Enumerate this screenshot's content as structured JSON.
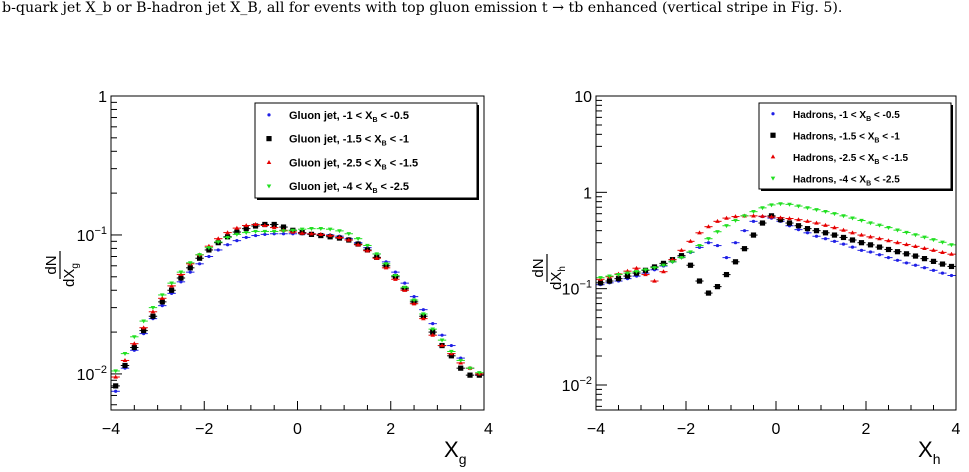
{
  "caption": "b-quark jet X_b or B-hadron jet X_B, all for events with top gluon emission t → tb enhanced (vertical stripe in Fig. 5).",
  "chart_data": [
    {
      "type": "scatter",
      "log_y": true,
      "xlim": [
        -4,
        4
      ],
      "ylim": [
        0.0055,
        1
      ],
      "x_ticks": [
        "−4",
        "−2",
        "0",
        "2",
        "4"
      ],
      "y_ticks": [
        {
          "value": 1,
          "base": "1",
          "exp": ""
        },
        {
          "value": 0.1,
          "base": "10",
          "exp": "−1"
        },
        {
          "value": 0.01,
          "base": "10",
          "exp": "−2"
        }
      ],
      "xlabel_main": "X",
      "xlabel_sub": "g",
      "ylabel_num": "dN",
      "ylabel_den_main": "dX",
      "ylabel_den_sub": "g",
      "legend_position": "top-right",
      "grid": false,
      "x": [
        -3.9,
        -3.7,
        -3.5,
        -3.3,
        -3.1,
        -2.9,
        -2.7,
        -2.5,
        -2.3,
        -2.1,
        -1.9,
        -1.7,
        -1.5,
        -1.3,
        -1.1,
        -0.9,
        -0.7,
        -0.5,
        -0.3,
        -0.1,
        0.1,
        0.3,
        0.5,
        0.7,
        0.9,
        1.1,
        1.3,
        1.5,
        1.7,
        1.9,
        2.1,
        2.3,
        2.5,
        2.7,
        2.9,
        3.1,
        3.3,
        3.5,
        3.7,
        3.9
      ],
      "series": [
        {
          "name": "Gluon jet, -1 < X",
          "name_sub": "B",
          "name_tail": " < -0.5",
          "color": "#1f1fe6",
          "marker": "dot",
          "values": [
            0.0075,
            0.011,
            0.0148,
            0.0195,
            0.025,
            0.031,
            0.038,
            0.046,
            0.054,
            0.062,
            0.07,
            0.078,
            0.085,
            0.091,
            0.096,
            0.099,
            0.101,
            0.102,
            0.102,
            0.102,
            0.102,
            0.102,
            0.101,
            0.1,
            0.098,
            0.094,
            0.088,
            0.081,
            0.073,
            0.064,
            0.054,
            0.045,
            0.036,
            0.029,
            0.023,
            0.019,
            0.016,
            0.013,
            0.011,
            0.0098
          ]
        },
        {
          "name": "Gluon jet, -1.5 < X",
          "name_sub": "B",
          "name_tail": " < -1",
          "color": "#000000",
          "marker": "square",
          "values": [
            0.0082,
            0.0115,
            0.0155,
            0.0205,
            0.026,
            0.033,
            0.04,
            0.049,
            0.058,
            0.068,
            0.078,
            0.088,
            0.097,
            0.105,
            0.111,
            0.116,
            0.119,
            0.119,
            0.114,
            0.108,
            0.104,
            0.101,
            0.099,
            0.097,
            0.095,
            0.092,
            0.086,
            0.078,
            0.069,
            0.06,
            0.05,
            0.041,
            0.033,
            0.026,
            0.02,
            0.016,
            0.0135,
            0.011,
            0.0098,
            0.0098
          ]
        },
        {
          "name": "Gluon jet, -2.5 < X",
          "name_sub": "B",
          "name_tail": " < -1.5",
          "color": "#e60000",
          "marker": "triangle",
          "values": [
            0.0095,
            0.0125,
            0.0165,
            0.0215,
            0.028,
            0.035,
            0.043,
            0.052,
            0.062,
            0.072,
            0.083,
            0.094,
            0.104,
            0.112,
            0.117,
            0.119,
            0.117,
            0.113,
            0.108,
            0.105,
            0.103,
            0.102,
            0.101,
            0.099,
            0.096,
            0.092,
            0.085,
            0.077,
            0.068,
            0.058,
            0.048,
            0.04,
            0.032,
            0.025,
            0.019,
            0.016,
            0.014,
            0.012,
            0.011,
            0.01
          ]
        },
        {
          "name": "Gluon jet, -4 < X",
          "name_sub": "B",
          "name_tail": " < -2.5",
          "color": "#22e022",
          "marker": "tridown",
          "values": [
            0.0105,
            0.014,
            0.0185,
            0.024,
            0.03,
            0.037,
            0.045,
            0.054,
            0.063,
            0.072,
            0.081,
            0.089,
            0.096,
            0.101,
            0.104,
            0.106,
            0.106,
            0.106,
            0.107,
            0.108,
            0.11,
            0.111,
            0.111,
            0.11,
            0.107,
            0.102,
            0.094,
            0.084,
            0.073,
            0.062,
            0.051,
            0.042,
            0.034,
            0.027,
            0.021,
            0.0175,
            0.0145,
            0.0125,
            0.011,
            0.0102
          ]
        }
      ]
    },
    {
      "type": "scatter",
      "log_y": true,
      "xlim": [
        -4,
        4
      ],
      "ylim": [
        0.0055,
        10
      ],
      "x_ticks": [
        "−4",
        "−2",
        "0",
        "2",
        "4"
      ],
      "y_ticks": [
        {
          "value": 10,
          "base": "10",
          "exp": ""
        },
        {
          "value": 1,
          "base": "1",
          "exp": ""
        },
        {
          "value": 0.1,
          "base": "10",
          "exp": "−1"
        },
        {
          "value": 0.01,
          "base": "10",
          "exp": "−2"
        }
      ],
      "xlabel_main": "X",
      "xlabel_sub": "h",
      "ylabel_num": "dN",
      "ylabel_den_main": "dX",
      "ylabel_den_sub": "h",
      "legend_position": "top-right",
      "grid": false,
      "x": [
        -3.9,
        -3.7,
        -3.5,
        -3.3,
        -3.1,
        -2.9,
        -2.7,
        -2.5,
        -2.3,
        -2.1,
        -1.9,
        -1.7,
        -1.5,
        -1.3,
        -1.1,
        -0.9,
        -0.7,
        -0.5,
        -0.3,
        -0.1,
        0.1,
        0.3,
        0.5,
        0.7,
        0.9,
        1.1,
        1.3,
        1.5,
        1.7,
        1.9,
        2.1,
        2.3,
        2.5,
        2.7,
        2.9,
        3.1,
        3.3,
        3.5,
        3.7,
        3.9
      ],
      "series": [
        {
          "name": "Hadrons, -1 < X",
          "name_sub": "B",
          "name_tail": " < -0.5",
          "color": "#1f1fe6",
          "marker": "dot",
          "values": [
            0.11,
            0.115,
            0.12,
            0.127,
            0.135,
            0.145,
            0.157,
            0.172,
            0.19,
            0.212,
            0.238,
            0.268,
            0.3,
            0.28,
            0.21,
            0.3,
            0.4,
            0.5,
            0.56,
            0.54,
            0.5,
            0.45,
            0.41,
            0.38,
            0.35,
            0.33,
            0.31,
            0.29,
            0.27,
            0.25,
            0.24,
            0.225,
            0.21,
            0.197,
            0.185,
            0.175,
            0.165,
            0.155,
            0.145,
            0.137
          ]
        },
        {
          "name": "Hadrons, -1.5 < X",
          "name_sub": "B",
          "name_tail": " < -1",
          "color": "#000000",
          "marker": "square",
          "values": [
            0.115,
            0.12,
            0.127,
            0.135,
            0.145,
            0.155,
            0.168,
            0.183,
            0.2,
            0.22,
            0.175,
            0.12,
            0.09,
            0.105,
            0.14,
            0.19,
            0.26,
            0.36,
            0.48,
            0.57,
            0.52,
            0.48,
            0.45,
            0.42,
            0.4,
            0.38,
            0.36,
            0.34,
            0.32,
            0.3,
            0.285,
            0.27,
            0.255,
            0.242,
            0.23,
            0.218,
            0.205,
            0.192,
            0.18,
            0.17
          ]
        },
        {
          "name": "Hadrons, -2.5 < X",
          "name_sub": "B",
          "name_tail": " < -1.5",
          "color": "#e60000",
          "marker": "triangle",
          "values": [
            0.125,
            0.133,
            0.142,
            0.152,
            0.163,
            0.14,
            0.12,
            0.15,
            0.2,
            0.25,
            0.31,
            0.38,
            0.44,
            0.5,
            0.54,
            0.56,
            0.57,
            0.57,
            0.565,
            0.555,
            0.545,
            0.535,
            0.52,
            0.5,
            0.48,
            0.455,
            0.43,
            0.405,
            0.38,
            0.36,
            0.345,
            0.33,
            0.315,
            0.3,
            0.287,
            0.275,
            0.262,
            0.25,
            0.238,
            0.228
          ]
        },
        {
          "name": "Hadrons, -4 < X",
          "name_sub": "B",
          "name_tail": " < -2.5",
          "color": "#22e022",
          "marker": "tridown",
          "values": [
            0.13,
            0.135,
            0.14,
            0.145,
            0.15,
            0.157,
            0.165,
            0.175,
            0.19,
            0.21,
            0.24,
            0.28,
            0.33,
            0.39,
            0.45,
            0.51,
            0.57,
            0.63,
            0.69,
            0.74,
            0.76,
            0.75,
            0.72,
            0.69,
            0.66,
            0.63,
            0.6,
            0.57,
            0.54,
            0.51,
            0.48,
            0.455,
            0.43,
            0.405,
            0.383,
            0.362,
            0.342,
            0.322,
            0.303,
            0.285
          ]
        }
      ]
    }
  ]
}
